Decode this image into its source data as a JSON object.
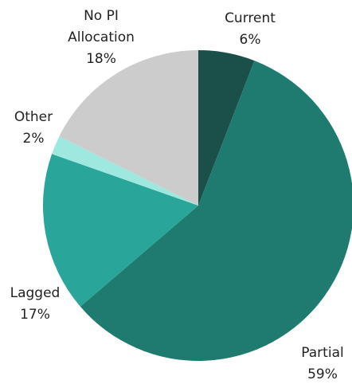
{
  "chart_data": {
    "type": "pie",
    "categories": [
      "Current",
      "Partial",
      "Lagged",
      "Other",
      "No PI Allocation"
    ],
    "values": [
      6,
      59,
      17,
      2,
      18
    ],
    "value_labels": [
      "6%",
      "59%",
      "17%",
      "2%",
      "18%"
    ],
    "colors": [
      "#1a4f4a",
      "#1f7a70",
      "#2aa59a",
      "#9fe8e0",
      "#cccccc"
    ]
  }
}
